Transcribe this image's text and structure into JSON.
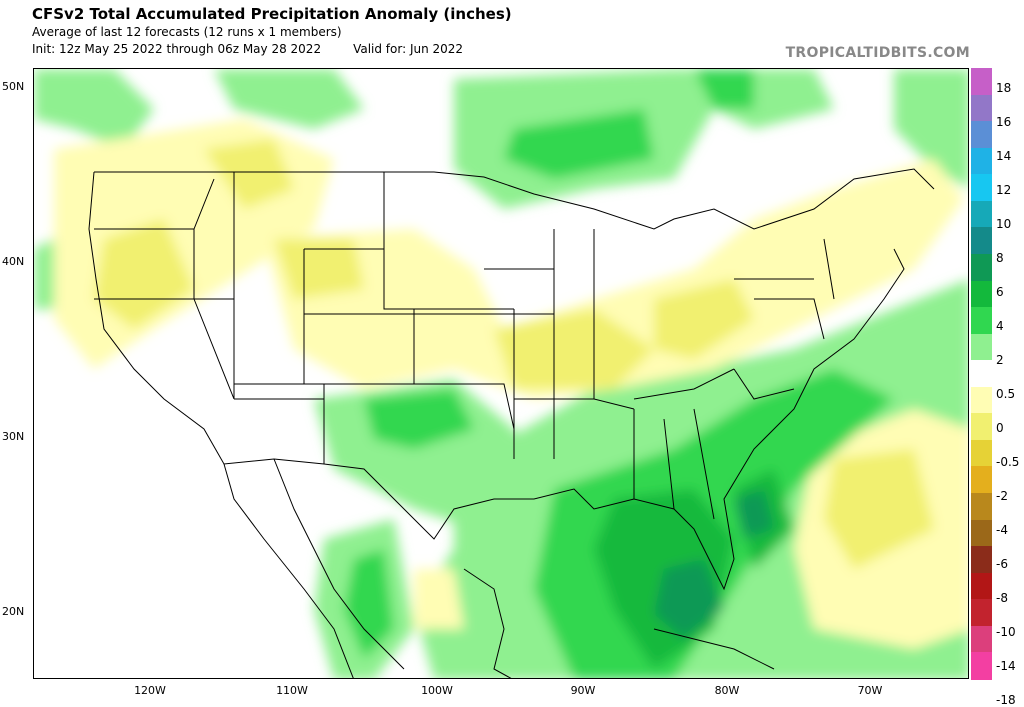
{
  "header": {
    "title": "CFSv2 Total Accumulated Precipitation Anomaly (inches)",
    "subtitle": "Average of last 12 forecasts (12 runs x 1 members)",
    "init": "Init: 12z May 25 2022 through 06z May 28 2022",
    "valid": "Valid for: Jun 2022"
  },
  "brand": "TROPICALTIDBITS.COM",
  "map": {
    "latitude_labels": [
      "50N",
      "40N",
      "30N",
      "20N"
    ],
    "longitude_labels": [
      "120W",
      "110W",
      "100W",
      "90W",
      "80W",
      "70W"
    ]
  },
  "colorbar": {
    "labels": [
      "18",
      "16",
      "14",
      "12",
      "10",
      "8",
      "6",
      "4",
      "2",
      "0.5",
      "0",
      "-0.5",
      "-2",
      "-4",
      "-6",
      "-8",
      "-10",
      "-14",
      "-18"
    ],
    "colors": [
      "#c65fc8",
      "#9277c8",
      "#5b8fd6",
      "#1fb2e6",
      "#17c7f1",
      "#16a9b8",
      "#148a8a",
      "#0f9955",
      "#13b93c",
      "#30d750",
      "#8ff090",
      "#ffffff",
      "#fffdb4",
      "#f1f070",
      "#e6d236",
      "#e4af1d",
      "#b9881c",
      "#9b6819",
      "#8b2c1a",
      "#b21616",
      "#c2232e",
      "#dc3f7c",
      "#f33fa2"
    ]
  }
}
